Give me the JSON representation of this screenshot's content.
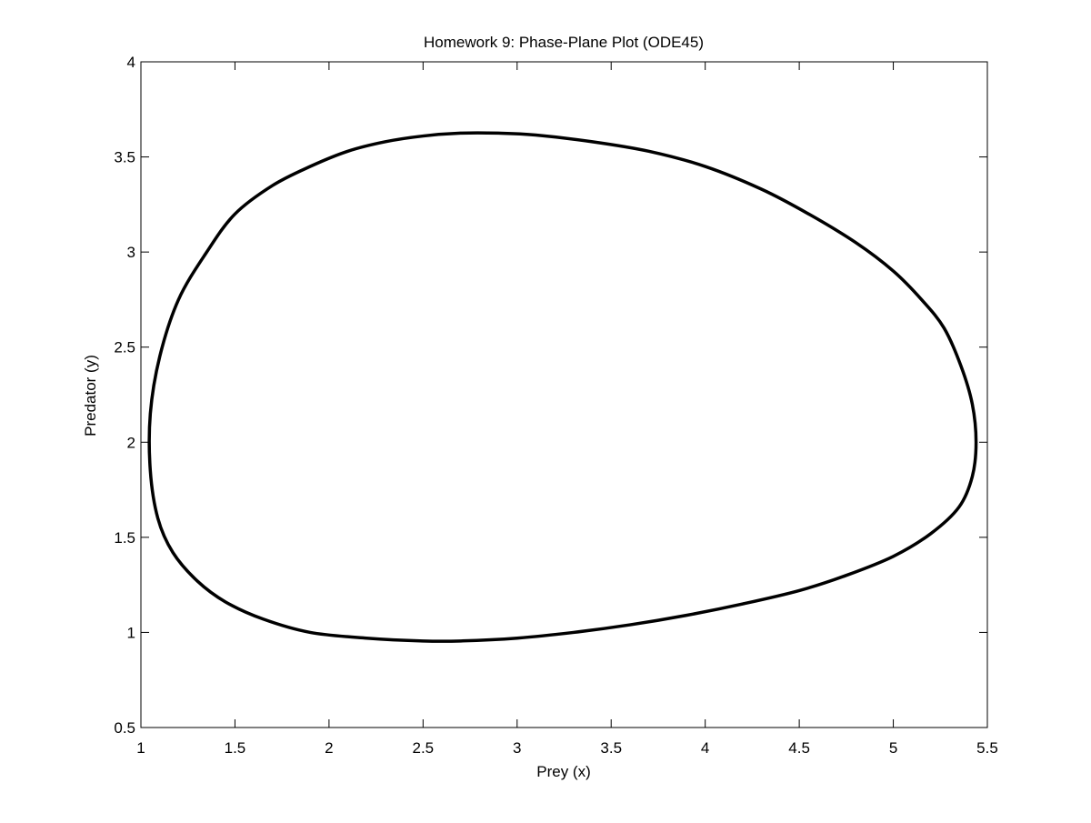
{
  "chart_data": {
    "type": "line",
    "title": "Homework 9: Phase-Plane Plot (ODE45)",
    "xlabel": "Prey (x)",
    "ylabel": "Predator (y)",
    "xlim": [
      1,
      5.5
    ],
    "ylim": [
      0.5,
      4
    ],
    "xticks": [
      "1",
      "1.5",
      "2",
      "2.5",
      "3",
      "3.5",
      "4",
      "4.5",
      "5",
      "5.5"
    ],
    "yticks": [
      "0.5",
      "1",
      "1.5",
      "2",
      "2.5",
      "3",
      "3.5",
      "4"
    ],
    "grid": false,
    "legend": "none",
    "line_color": "#000000",
    "series": [
      {
        "x": [
          5.44,
          5.42,
          5.36,
          5.27,
          5.15,
          5.0,
          4.8,
          4.55,
          4.3,
          4.0,
          3.7,
          3.4,
          3.1,
          2.9,
          2.7,
          2.5,
          2.3,
          2.1,
          1.9,
          1.7,
          1.5,
          1.35,
          1.2,
          1.1,
          1.05,
          1.05,
          1.09,
          1.17,
          1.3,
          1.45,
          1.65,
          1.9,
          2.2,
          2.5,
          2.7,
          3.0,
          3.3,
          3.6,
          3.9,
          4.2,
          4.5,
          4.75,
          5.0,
          5.2,
          5.35,
          5.42,
          5.44
        ],
        "y": [
          2.0,
          2.2,
          2.4,
          2.6,
          2.75,
          2.9,
          3.05,
          3.2,
          3.33,
          3.45,
          3.53,
          3.58,
          3.615,
          3.625,
          3.625,
          3.61,
          3.58,
          3.53,
          3.45,
          3.35,
          3.2,
          3.0,
          2.75,
          2.45,
          2.15,
          1.85,
          1.6,
          1.42,
          1.27,
          1.16,
          1.07,
          1.0,
          0.97,
          0.955,
          0.955,
          0.97,
          1.0,
          1.04,
          1.09,
          1.15,
          1.22,
          1.3,
          1.4,
          1.52,
          1.66,
          1.82,
          2.0
        ]
      }
    ]
  }
}
